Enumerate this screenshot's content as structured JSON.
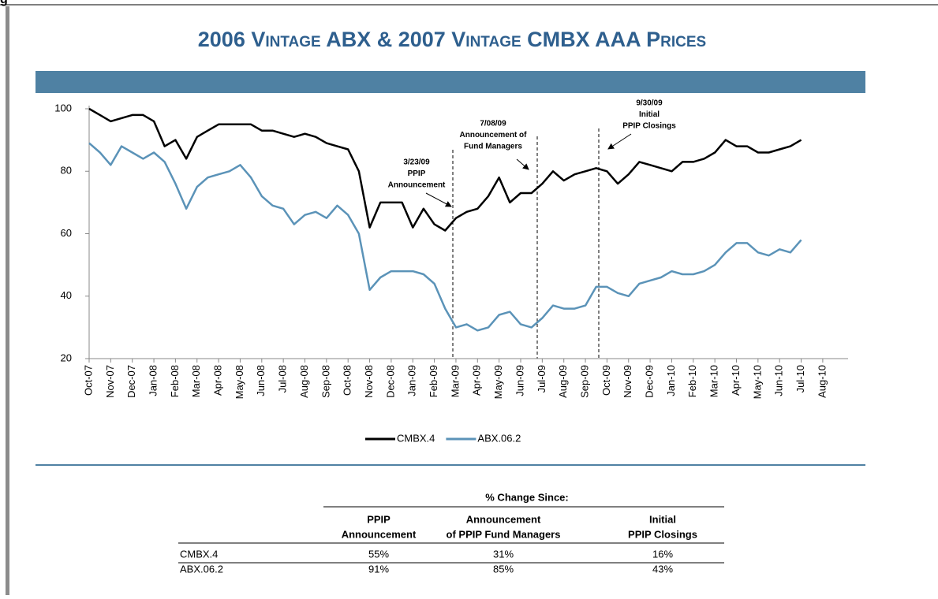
{
  "header_fragment": "g",
  "chart_data": {
    "type": "line",
    "title": "2006 Vintage ABX & 2007 Vintage CMBX AAA Prices",
    "categories": [
      "Oct-07",
      null,
      "Nov-07",
      null,
      "Dec-07",
      null,
      "Jan-08",
      null,
      "Feb-08",
      null,
      "Mar-08",
      null,
      "Apr-08",
      null,
      "May-08",
      null,
      "Jun-08",
      null,
      "Jul-08",
      null,
      "Aug-08",
      null,
      "Sep-08",
      null,
      "Oct-08",
      null,
      "Nov-08",
      null,
      "Dec-08",
      null,
      "Jan-09",
      null,
      "Feb-09",
      null,
      "Mar-09",
      null,
      "Apr-09",
      null,
      "May-09",
      null,
      "Jun-09",
      null,
      "Jul-09",
      null,
      "Aug-09",
      null,
      "Sep-09",
      null,
      "Oct-09",
      null,
      "Nov-09",
      null,
      "Dec-09",
      null,
      "Jan-10",
      null,
      "Feb-10",
      null,
      "Mar-10",
      null,
      "Apr-10",
      null,
      "May-10",
      null,
      "Jun-10",
      null,
      "Jul-10",
      null,
      "Aug-10"
    ],
    "series": [
      {
        "name": "CMBX.4",
        "color": "#000000",
        "values": [
          100,
          98,
          96,
          97,
          98,
          98,
          96,
          88,
          90,
          84,
          91,
          93,
          95,
          95,
          95,
          95,
          93,
          93,
          92,
          91,
          92,
          91,
          89,
          88,
          87,
          80,
          62,
          70,
          70,
          70,
          62,
          68,
          63,
          61,
          65,
          67,
          68,
          72,
          78,
          70,
          73,
          73,
          76,
          80,
          77,
          79,
          80,
          81,
          80,
          76,
          79,
          83,
          82,
          81,
          80,
          83,
          83,
          84,
          86,
          90,
          88,
          88,
          86,
          86,
          87,
          88,
          90,
          null,
          null
        ]
      },
      {
        "name": "ABX.06.2",
        "color": "#5b93b8",
        "values": [
          89,
          86,
          82,
          88,
          86,
          84,
          86,
          83,
          76,
          68,
          75,
          78,
          79,
          80,
          82,
          78,
          72,
          69,
          68,
          63,
          66,
          67,
          65,
          69,
          66,
          60,
          42,
          46,
          48,
          48,
          48,
          47,
          44,
          36,
          30,
          31,
          29,
          30,
          34,
          35,
          31,
          30,
          33,
          37,
          36,
          36,
          37,
          43,
          43,
          41,
          40,
          44,
          45,
          46,
          48,
          47,
          47,
          48,
          50,
          54,
          57,
          57,
          54,
          53,
          55,
          54,
          58,
          null,
          null
        ]
      }
    ],
    "ylim": [
      20,
      100
    ],
    "yticks": [
      20,
      40,
      60,
      80,
      100
    ],
    "grid": false,
    "annotations": [
      [
        "3/23/09",
        "PPIP",
        "Announcement"
      ],
      [
        "7/08/09",
        "Announcement of",
        "Fund Managers"
      ],
      [
        "9/30/09",
        "Initial",
        "PPIP Closings"
      ]
    ]
  },
  "table": {
    "group_header": "% Change Since:",
    "columns": [
      [
        "PPIP",
        "Announcement"
      ],
      [
        "Announcement",
        "of PPIP Fund Managers"
      ],
      [
        "Initial",
        "PPIP Closings"
      ]
    ],
    "rows": [
      [
        "CMBX.4",
        "55%",
        "31%",
        "16%"
      ],
      [
        "ABX.06.2",
        "91%",
        "85%",
        "43%"
      ]
    ]
  }
}
